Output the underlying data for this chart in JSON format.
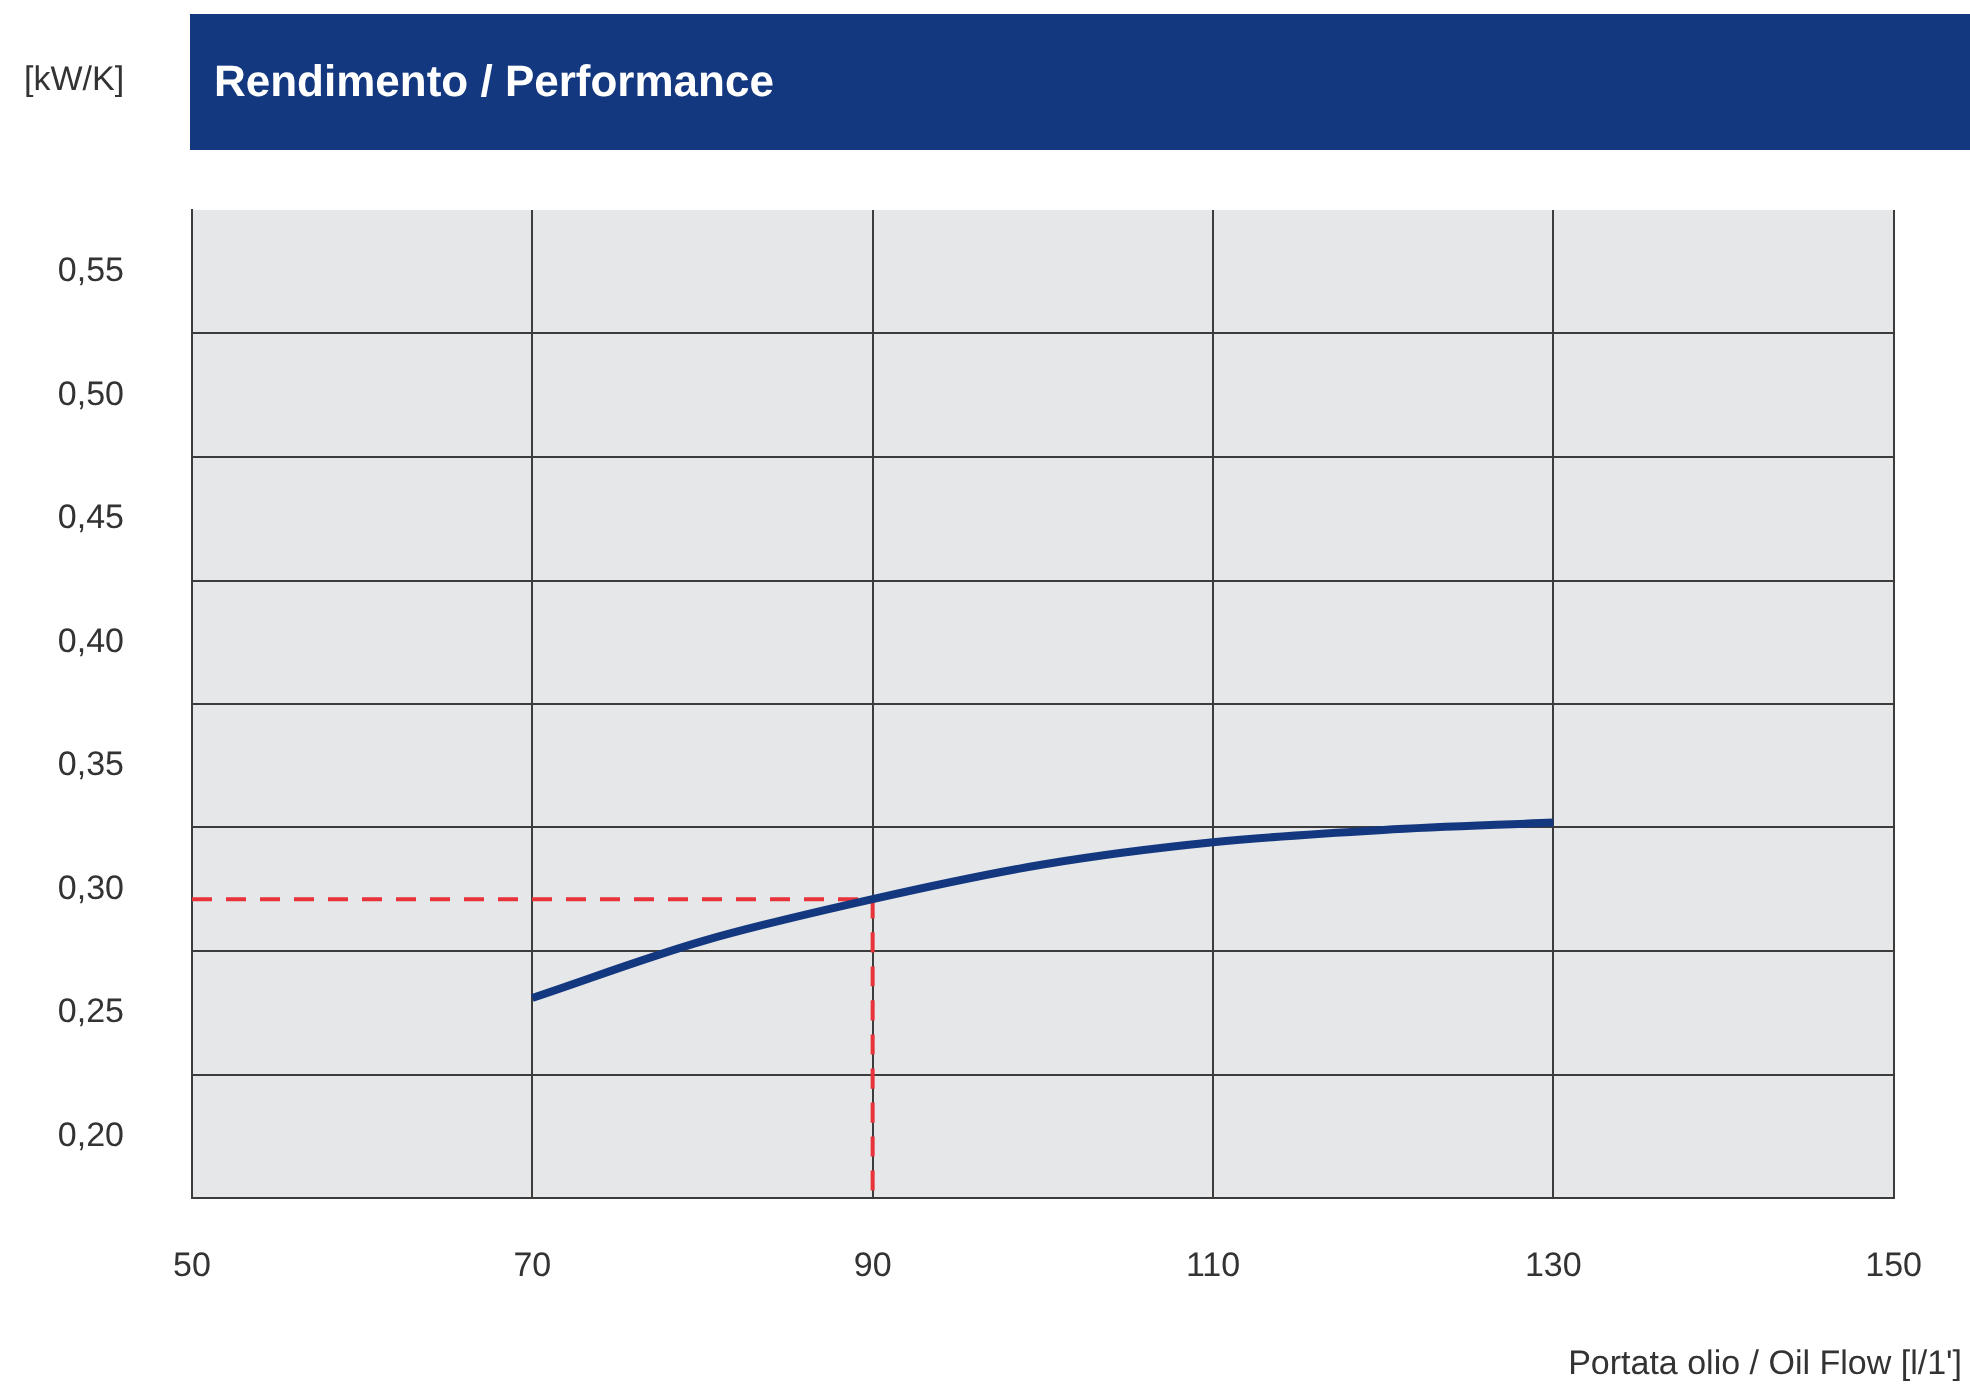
{
  "chart_data": {
    "type": "line",
    "title": "Rendimento / Performance",
    "xlabel": "Portata olio / Oil Flow [l/1']",
    "ylabel": "[kW/K]",
    "xlim": [
      50,
      150
    ],
    "xticks": [
      50,
      70,
      90,
      110,
      130,
      150
    ],
    "ylim": [
      0.175,
      0.575
    ],
    "yticks": [
      {
        "value": 0.2,
        "label": "0,20"
      },
      {
        "value": 0.225,
        "label": null
      },
      {
        "value": 0.25,
        "label": "0,25"
      },
      {
        "value": 0.275,
        "label": null
      },
      {
        "value": 0.3,
        "label": "0,30"
      },
      {
        "value": 0.325,
        "label": null
      },
      {
        "value": 0.35,
        "label": "0,35"
      },
      {
        "value": 0.375,
        "label": null
      },
      {
        "value": 0.4,
        "label": "0,40"
      },
      {
        "value": 0.425,
        "label": null
      },
      {
        "value": 0.45,
        "label": "0,45"
      },
      {
        "value": 0.475,
        "label": null
      },
      {
        "value": 0.5,
        "label": "0,50"
      },
      {
        "value": 0.525,
        "label": null
      },
      {
        "value": 0.55,
        "label": "0,55"
      }
    ],
    "grid": true,
    "legend": false,
    "marker": "none",
    "series": [
      {
        "x": [
          70,
          80,
          90,
          100,
          110,
          120,
          130
        ],
        "values": [
          0.256,
          0.279,
          0.296,
          0.31,
          0.319,
          0.324,
          0.327
        ],
        "color": "#14387f"
      },
      {
        "x": [
          50,
          90,
          90
        ],
        "values": [
          0.296,
          0.296,
          0.175
        ],
        "color": "#e8333a",
        "line_style": "dashed"
      }
    ]
  }
}
